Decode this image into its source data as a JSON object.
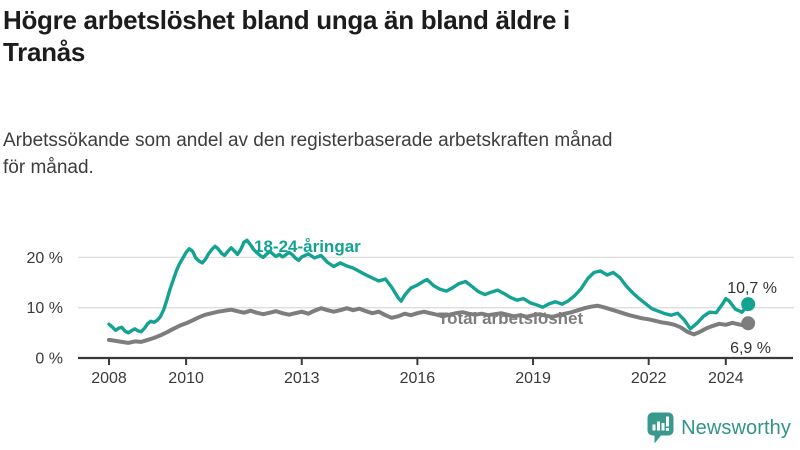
{
  "header": {
    "title_lines": [
      "Högre arbetslöshet bland unga än bland äldre i",
      "Tranås"
    ],
    "subtitle_lines": [
      "Arbetssökande som andel av den registerbaserade arbetskraften månad",
      "för månad."
    ]
  },
  "chart_data": {
    "type": "line",
    "title": "Högre arbetslöshet bland unga än bland äldre i Tranås",
    "subtitle": "Arbetssökande som andel av den registerbaserade arbetskraften månad för månad.",
    "xlabel": "",
    "ylabel": "",
    "x_unit": "decimal year (monthly data)",
    "xlim": [
      2007.2,
      2025.8
    ],
    "ylim": [
      0,
      25
    ],
    "grid": "horizontal",
    "legend_position": "inline-labels",
    "yticks": [
      {
        "value": 0,
        "label": "0 %"
      },
      {
        "value": 10,
        "label": "10 %"
      },
      {
        "value": 20,
        "label": "20 %"
      }
    ],
    "xticks": [
      {
        "value": 2008,
        "label": "2008"
      },
      {
        "value": 2010,
        "label": "2010"
      },
      {
        "value": 2013,
        "label": "2013"
      },
      {
        "value": 2016,
        "label": "2016"
      },
      {
        "value": 2019,
        "label": "2019"
      },
      {
        "value": 2022,
        "label": "2022"
      },
      {
        "value": 2024,
        "label": "2024"
      }
    ],
    "series": [
      {
        "name": "18-24-åringar",
        "label": "18-24-åringar",
        "color": "#14a292",
        "end_value": 10.7,
        "end_label": "10,7 %",
        "points": [
          [
            2008.0,
            6.7
          ],
          [
            2008.08,
            6.2
          ],
          [
            2008.17,
            5.5
          ],
          [
            2008.25,
            5.9
          ],
          [
            2008.33,
            6.1
          ],
          [
            2008.42,
            5.3
          ],
          [
            2008.5,
            5.0
          ],
          [
            2008.58,
            5.4
          ],
          [
            2008.67,
            5.8
          ],
          [
            2008.75,
            5.4
          ],
          [
            2008.83,
            5.2
          ],
          [
            2008.92,
            5.9
          ],
          [
            2009.0,
            6.8
          ],
          [
            2009.08,
            7.3
          ],
          [
            2009.17,
            7.1
          ],
          [
            2009.25,
            7.5
          ],
          [
            2009.33,
            8.2
          ],
          [
            2009.42,
            9.6
          ],
          [
            2009.5,
            11.5
          ],
          [
            2009.58,
            13.6
          ],
          [
            2009.67,
            15.6
          ],
          [
            2009.75,
            17.4
          ],
          [
            2009.83,
            18.7
          ],
          [
            2009.92,
            19.9
          ],
          [
            2010.0,
            21.0
          ],
          [
            2010.08,
            21.7
          ],
          [
            2010.17,
            21.2
          ],
          [
            2010.25,
            19.9
          ],
          [
            2010.33,
            19.3
          ],
          [
            2010.42,
            18.9
          ],
          [
            2010.5,
            19.6
          ],
          [
            2010.58,
            20.7
          ],
          [
            2010.67,
            21.6
          ],
          [
            2010.75,
            22.2
          ],
          [
            2010.83,
            21.7
          ],
          [
            2010.92,
            20.8
          ],
          [
            2011.0,
            20.4
          ],
          [
            2011.08,
            21.2
          ],
          [
            2011.17,
            21.9
          ],
          [
            2011.25,
            21.3
          ],
          [
            2011.33,
            20.6
          ],
          [
            2011.42,
            21.6
          ],
          [
            2011.5,
            23.0
          ],
          [
            2011.58,
            23.4
          ],
          [
            2011.67,
            22.5
          ],
          [
            2011.75,
            21.6
          ],
          [
            2011.83,
            21.0
          ],
          [
            2011.92,
            20.4
          ],
          [
            2012.0,
            20.0
          ],
          [
            2012.08,
            20.6
          ],
          [
            2012.17,
            21.2
          ],
          [
            2012.25,
            20.7
          ],
          [
            2012.33,
            20.2
          ],
          [
            2012.42,
            20.6
          ],
          [
            2012.5,
            20.1
          ],
          [
            2012.58,
            20.5
          ],
          [
            2012.67,
            21.0
          ],
          [
            2012.75,
            20.6
          ],
          [
            2012.83,
            19.9
          ],
          [
            2012.92,
            19.4
          ],
          [
            2013.0,
            20.1
          ],
          [
            2013.17,
            20.7
          ],
          [
            2013.33,
            19.9
          ],
          [
            2013.5,
            20.4
          ],
          [
            2013.67,
            19.0
          ],
          [
            2013.83,
            18.2
          ],
          [
            2014.0,
            18.9
          ],
          [
            2014.17,
            18.3
          ],
          [
            2014.33,
            17.9
          ],
          [
            2014.5,
            17.2
          ],
          [
            2014.67,
            16.5
          ],
          [
            2014.83,
            15.9
          ],
          [
            2015.0,
            15.3
          ],
          [
            2015.17,
            15.7
          ],
          [
            2015.33,
            14.1
          ],
          [
            2015.5,
            12.0
          ],
          [
            2015.58,
            11.3
          ],
          [
            2015.67,
            12.5
          ],
          [
            2015.83,
            13.9
          ],
          [
            2016.0,
            14.5
          ],
          [
            2016.17,
            15.3
          ],
          [
            2016.25,
            15.6
          ],
          [
            2016.42,
            14.4
          ],
          [
            2016.58,
            13.7
          ],
          [
            2016.75,
            13.3
          ],
          [
            2016.92,
            14.0
          ],
          [
            2017.08,
            14.8
          ],
          [
            2017.25,
            15.2
          ],
          [
            2017.42,
            14.2
          ],
          [
            2017.58,
            13.2
          ],
          [
            2017.75,
            12.6
          ],
          [
            2017.92,
            13.1
          ],
          [
            2018.08,
            13.5
          ],
          [
            2018.25,
            12.8
          ],
          [
            2018.42,
            12.0
          ],
          [
            2018.58,
            11.5
          ],
          [
            2018.75,
            11.8
          ],
          [
            2018.92,
            11.0
          ],
          [
            2019.08,
            10.6
          ],
          [
            2019.25,
            10.1
          ],
          [
            2019.42,
            10.8
          ],
          [
            2019.58,
            11.2
          ],
          [
            2019.75,
            10.7
          ],
          [
            2019.92,
            11.4
          ],
          [
            2020.08,
            12.4
          ],
          [
            2020.25,
            13.8
          ],
          [
            2020.42,
            15.8
          ],
          [
            2020.58,
            17.0
          ],
          [
            2020.75,
            17.3
          ],
          [
            2020.92,
            16.5
          ],
          [
            2021.08,
            17.0
          ],
          [
            2021.25,
            16.0
          ],
          [
            2021.42,
            14.3
          ],
          [
            2021.58,
            13.0
          ],
          [
            2021.75,
            11.8
          ],
          [
            2021.92,
            10.8
          ],
          [
            2022.08,
            9.8
          ],
          [
            2022.25,
            9.3
          ],
          [
            2022.42,
            8.8
          ],
          [
            2022.58,
            8.5
          ],
          [
            2022.75,
            8.9
          ],
          [
            2022.92,
            7.6
          ],
          [
            2023.08,
            5.8
          ],
          [
            2023.25,
            6.9
          ],
          [
            2023.42,
            8.3
          ],
          [
            2023.58,
            9.1
          ],
          [
            2023.75,
            9.0
          ],
          [
            2023.92,
            10.8
          ],
          [
            2024.0,
            11.8
          ],
          [
            2024.08,
            11.4
          ],
          [
            2024.25,
            9.7
          ],
          [
            2024.42,
            9.1
          ],
          [
            2024.58,
            10.7
          ]
        ]
      },
      {
        "name": "Total arbetslöshet",
        "label": "Total arbetslöshet",
        "color": "#7d7d7d",
        "end_value": 6.9,
        "end_label": "6,9 %",
        "points": [
          [
            2008.0,
            3.6
          ],
          [
            2008.17,
            3.4
          ],
          [
            2008.33,
            3.2
          ],
          [
            2008.5,
            3.0
          ],
          [
            2008.67,
            3.3
          ],
          [
            2008.83,
            3.2
          ],
          [
            2009.0,
            3.6
          ],
          [
            2009.17,
            4.0
          ],
          [
            2009.33,
            4.5
          ],
          [
            2009.5,
            5.1
          ],
          [
            2009.67,
            5.8
          ],
          [
            2009.83,
            6.4
          ],
          [
            2010.0,
            6.9
          ],
          [
            2010.17,
            7.5
          ],
          [
            2010.33,
            8.1
          ],
          [
            2010.5,
            8.6
          ],
          [
            2010.67,
            8.9
          ],
          [
            2010.83,
            9.2
          ],
          [
            2011.0,
            9.4
          ],
          [
            2011.17,
            9.6
          ],
          [
            2011.33,
            9.3
          ],
          [
            2011.5,
            9.0
          ],
          [
            2011.67,
            9.4
          ],
          [
            2011.83,
            9.0
          ],
          [
            2012.0,
            8.7
          ],
          [
            2012.17,
            9.0
          ],
          [
            2012.33,
            9.3
          ],
          [
            2012.5,
            8.9
          ],
          [
            2012.67,
            8.6
          ],
          [
            2012.83,
            8.9
          ],
          [
            2013.0,
            9.2
          ],
          [
            2013.17,
            8.8
          ],
          [
            2013.33,
            9.4
          ],
          [
            2013.5,
            9.9
          ],
          [
            2013.67,
            9.5
          ],
          [
            2013.83,
            9.2
          ],
          [
            2014.0,
            9.5
          ],
          [
            2014.17,
            9.9
          ],
          [
            2014.33,
            9.5
          ],
          [
            2014.5,
            9.8
          ],
          [
            2014.67,
            9.3
          ],
          [
            2014.83,
            8.9
          ],
          [
            2015.0,
            9.2
          ],
          [
            2015.17,
            8.5
          ],
          [
            2015.33,
            8.0
          ],
          [
            2015.5,
            8.3
          ],
          [
            2015.67,
            8.8
          ],
          [
            2015.83,
            8.5
          ],
          [
            2016.0,
            8.9
          ],
          [
            2016.17,
            9.2
          ],
          [
            2016.33,
            8.9
          ],
          [
            2016.5,
            8.6
          ],
          [
            2016.67,
            8.3
          ],
          [
            2016.83,
            8.6
          ],
          [
            2017.0,
            8.9
          ],
          [
            2017.17,
            9.1
          ],
          [
            2017.33,
            8.8
          ],
          [
            2017.5,
            8.6
          ],
          [
            2017.67,
            8.8
          ],
          [
            2017.83,
            8.5
          ],
          [
            2018.0,
            8.7
          ],
          [
            2018.17,
            8.9
          ],
          [
            2018.33,
            8.6
          ],
          [
            2018.5,
            8.3
          ],
          [
            2018.67,
            8.5
          ],
          [
            2018.83,
            8.2
          ],
          [
            2019.0,
            8.5
          ],
          [
            2019.17,
            8.7
          ],
          [
            2019.33,
            8.4
          ],
          [
            2019.5,
            8.2
          ],
          [
            2019.67,
            8.5
          ],
          [
            2019.83,
            8.8
          ],
          [
            2020.0,
            9.1
          ],
          [
            2020.17,
            9.5
          ],
          [
            2020.33,
            9.9
          ],
          [
            2020.5,
            10.2
          ],
          [
            2020.67,
            10.4
          ],
          [
            2020.83,
            10.1
          ],
          [
            2021.0,
            9.7
          ],
          [
            2021.17,
            9.3
          ],
          [
            2021.33,
            8.9
          ],
          [
            2021.5,
            8.5
          ],
          [
            2021.67,
            8.2
          ],
          [
            2021.83,
            7.9
          ],
          [
            2022.0,
            7.7
          ],
          [
            2022.17,
            7.4
          ],
          [
            2022.33,
            7.1
          ],
          [
            2022.5,
            6.9
          ],
          [
            2022.67,
            6.6
          ],
          [
            2022.83,
            6.1
          ],
          [
            2023.0,
            5.2
          ],
          [
            2023.17,
            4.7
          ],
          [
            2023.33,
            5.2
          ],
          [
            2023.5,
            5.9
          ],
          [
            2023.67,
            6.4
          ],
          [
            2023.83,
            6.8
          ],
          [
            2024.0,
            6.6
          ],
          [
            2024.17,
            7.0
          ],
          [
            2024.33,
            6.7
          ],
          [
            2024.45,
            6.5
          ],
          [
            2024.58,
            6.9
          ]
        ]
      }
    ],
    "colors": {
      "grid": "#dedede",
      "axis": "#3a3a3a",
      "text_dark": "#333333"
    }
  },
  "branding": {
    "name": "Newsworthy",
    "icon": "newsworthy-bubble-chart-icon",
    "color": "#31948a",
    "icon_color": "#3a998d"
  }
}
